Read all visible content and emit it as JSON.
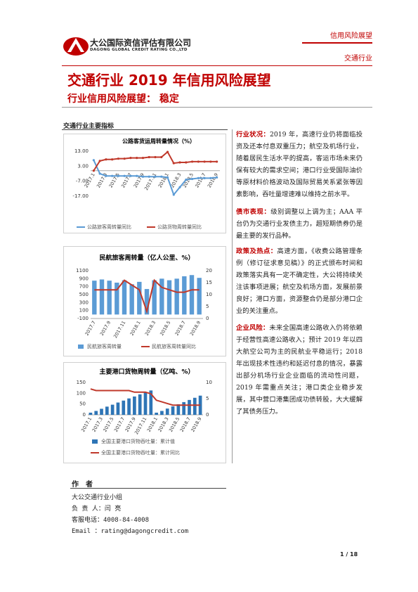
{
  "header": {
    "company": "大公国际资信评估有限公司",
    "company_en": "DAGONG GLOBAL CREDIT RATING CO.,LTD",
    "tag": "信用风险展望",
    "sector": "交通行业"
  },
  "title": "交通行业 2019 年信用风险展望",
  "subtitle": "行业信用风险展望：  稳定",
  "indicators_heading": "交通行业主要指标",
  "charts": [
    {
      "type": "line",
      "title": "公路客货运周转量情况（%）",
      "categories": [
        "2017.1",
        null,
        "2017.3",
        null,
        "2017.5",
        null,
        "2017.7",
        null,
        "2017.9",
        null,
        "2017.11",
        null,
        "2018.1",
        null,
        "2018.3",
        null,
        "2018.5",
        null,
        "2018.7",
        null,
        "2018.9"
      ],
      "ylim": [
        -17,
        13
      ],
      "yticks": [
        {
          "value": 13,
          "label": "13.00"
        },
        {
          "value": 3,
          "label": "3.00"
        },
        {
          "value": -7,
          "label": "-7.00"
        },
        {
          "value": -17,
          "label": "-17.00"
        }
      ],
      "series": [
        {
          "name": "公路旅客周转量同比",
          "color": "#5b9bd5",
          "type": "line",
          "values": [
            7,
            -2,
            -3.5,
            -3.5,
            -3.5,
            -3.5,
            -3.5,
            -3.5,
            -4,
            -4,
            -4,
            -4,
            -4.5,
            -16,
            -11,
            -6,
            -5.5,
            -5,
            -5,
            -5,
            -4.5
          ]
        },
        {
          "name": "公路货物周转量同比",
          "color": "#c0392b",
          "type": "line",
          "values": [
            0,
            6.5,
            7.5,
            7.5,
            8,
            8,
            8.5,
            8.5,
            8.5,
            9,
            9,
            9,
            12.5,
            5,
            5.5,
            5.5,
            6,
            6,
            6,
            6,
            6
          ]
        }
      ]
    },
    {
      "type": "combo",
      "title": "民航旅客周转量（亿人公里、%）",
      "categories": [
        "2017.7",
        null,
        "2017.9",
        null,
        "2017.11",
        null,
        "2018.1",
        null,
        "2018.3",
        null,
        "2018.5",
        null,
        "2018.7",
        null,
        "2018.9"
      ],
      "ylim": [
        -100,
        1100
      ],
      "yticks": [
        1100,
        900,
        700,
        500,
        300,
        100,
        -100
      ],
      "y2lim": [
        0,
        20
      ],
      "y2ticks": [
        20,
        15,
        10,
        5,
        0
      ],
      "series": [
        {
          "name": "民航旅客周转量",
          "color": "#5b9bd5",
          "type": "bar",
          "values": [
            850,
            880,
            850,
            800,
            860,
            760,
            820,
            640,
            860,
            900,
            860,
            900,
            960,
            990,
            920
          ]
        },
        {
          "name": "民航旅客周转量同比",
          "color": "#c0392b",
          "type": "line",
          "axis": "y2",
          "values": [
            12,
            12,
            12,
            12,
            16,
            14,
            12,
            3,
            16,
            13,
            12,
            11,
            11,
            12,
            12
          ]
        }
      ]
    },
    {
      "type": "combo",
      "title": "主要港口货物周转量（亿吨、%）",
      "categories": [
        "2017.1",
        null,
        "2017.3",
        null,
        "2017.5",
        null,
        "2017.7",
        null,
        "2017.9",
        null,
        "2017.11",
        null,
        "2018.1",
        null,
        "2018.3",
        null,
        "2018.5",
        null,
        "2018.7",
        null,
        "2018.9"
      ],
      "ylim": [
        0,
        150
      ],
      "yticks": [
        150,
        100,
        50,
        0
      ],
      "y2lim": [
        0,
        10
      ],
      "y2ticks": [
        10,
        5,
        0
      ],
      "series": [
        {
          "name": "全国主要港口货物吞吐量：累计值",
          "color": "#2e75b6",
          "type": "bar",
          "values": [
            10,
            18,
            28,
            38,
            47,
            57,
            66,
            76,
            85,
            95,
            104,
            113,
            10,
            18,
            29,
            39,
            49,
            59,
            69,
            79,
            89
          ]
        },
        {
          "name": "全国主要港口货物吞吐量：累计同比",
          "color": "#c0392b",
          "type": "line",
          "axis": "y2",
          "values": [
            8,
            7.5,
            7.5,
            7.5,
            7.5,
            7.5,
            7.5,
            7.5,
            7,
            7,
            7,
            6.5,
            4.5,
            4,
            3.5,
            3,
            3,
            3,
            3,
            3,
            3
          ]
        }
      ]
    }
  ],
  "paragraphs": [
    {
      "label": "行业状况：",
      "text": "2019 年，高速行业仍将面临投资及还本付息双重压力；航空及机场行业，随着居民生活水平的提高，客运市场未来仍保有较大的需求空间；港口行业受国际油价等原材料价格波动及国际贸易关系紧张等因素影响，吞吐量增速难以维持之前水平。"
    },
    {
      "label": "债市表现：",
      "text": "级别调整以上调为主；AAA 平台仍为交通行业发债主力，超短期债券仍是最主要的发行品种。"
    },
    {
      "label": "政策及热点：",
      "text": "高速方面，《收费公路管理条例（修订征求意见稿）》的正式颁布时间和政策落实具有一定不确定性，大公将持续关注该事项进展；航空及机场方面，发展前景良好；港口方面，资源整合仍是部分港口企业的关注重点。"
    },
    {
      "label": "企业风险：",
      "text": "未来全国高速公路收入仍将依赖于经营性高速公路收入；预计 2019 年以四大航空公司为主的民航业平稳运行；2018 年出现技术性违约和延迟付息的情况，暴露出部分机场行业企业面临的流动性问题，2019 年需重点关注；港口类企业稳步发展，其中营口港集团成功债转股，大大缓解了其债务压力。"
    }
  ],
  "author": {
    "heading": "作　者",
    "lines": [
      "大公交通行业小组",
      "负 责 人：闫 亮",
      "客服电话：4008-84-4008",
      "Email   ：rating@dagongcredit.com"
    ]
  },
  "footer": {
    "page": "1 / 18"
  }
}
